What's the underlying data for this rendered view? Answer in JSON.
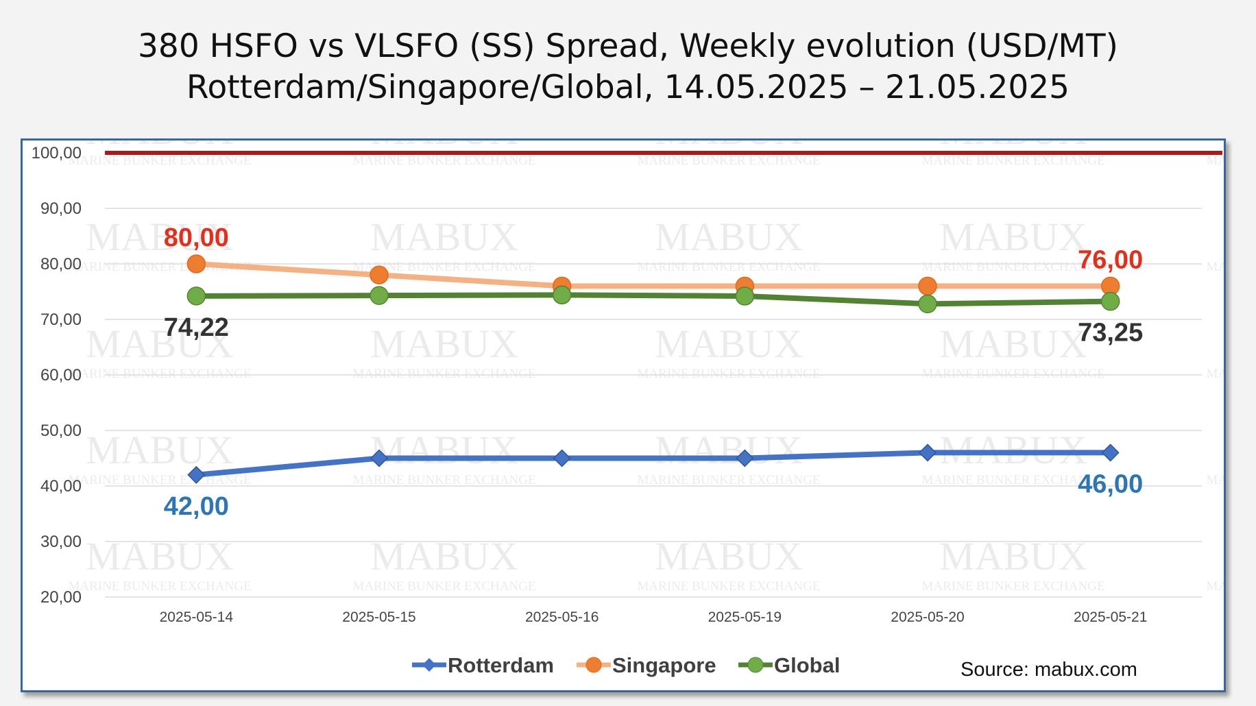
{
  "title": {
    "line1": "380 HSFO vs VLSFO (SS) Spread, Weekly evolution (USD/MT)",
    "line2": "Rotterdam/Singapore/Global, 14.05.2025 – 21.05.2025"
  },
  "watermark": {
    "main": "MABUX",
    "sub": "MARINE BUNKER EXCHANGE"
  },
  "source": "Source: mabux.com",
  "colors": {
    "rotterdam": "#4472c4",
    "singapore_line": "#f4b183",
    "singapore_marker": "#ed7d31",
    "global": "#548235",
    "global_marker": "#70ad47",
    "reference": "#a61c1c",
    "label_red": "#e0301e",
    "label_blue": "#2e75b6",
    "label_dark": "#333333"
  },
  "chart_data": {
    "type": "line",
    "categories": [
      "2025-05-14",
      "2025-05-15",
      "2025-05-16",
      "2025-05-19",
      "2025-05-20",
      "2025-05-21"
    ],
    "ylim": [
      20,
      100
    ],
    "yticks": [
      "20,00",
      "30,00",
      "40,00",
      "50,00",
      "60,00",
      "70,00",
      "80,00",
      "90,00",
      "100,00"
    ],
    "reference_line": 100,
    "series": [
      {
        "name": "Rotterdam",
        "values": [
          42,
          45,
          45,
          45,
          46,
          46
        ],
        "marker": "diamond"
      },
      {
        "name": "Singapore",
        "values": [
          80,
          78,
          76,
          76,
          76,
          76
        ],
        "marker": "circle"
      },
      {
        "name": "Global",
        "values": [
          74.22,
          74.3,
          74.4,
          74.2,
          72.8,
          73.25
        ],
        "marker": "circle"
      }
    ],
    "data_labels": [
      {
        "series": "Singapore",
        "index": 0,
        "text": "80,00",
        "pos": "above"
      },
      {
        "series": "Singapore",
        "index": 5,
        "text": "76,00",
        "pos": "above"
      },
      {
        "series": "Global",
        "index": 0,
        "text": "74,22",
        "pos": "below"
      },
      {
        "series": "Global",
        "index": 5,
        "text": "73,25",
        "pos": "below"
      },
      {
        "series": "Rotterdam",
        "index": 0,
        "text": "42,00",
        "pos": "below"
      },
      {
        "series": "Rotterdam",
        "index": 5,
        "text": "46,00",
        "pos": "below"
      }
    ],
    "legend": [
      "Rotterdam",
      "Singapore",
      "Global"
    ]
  }
}
